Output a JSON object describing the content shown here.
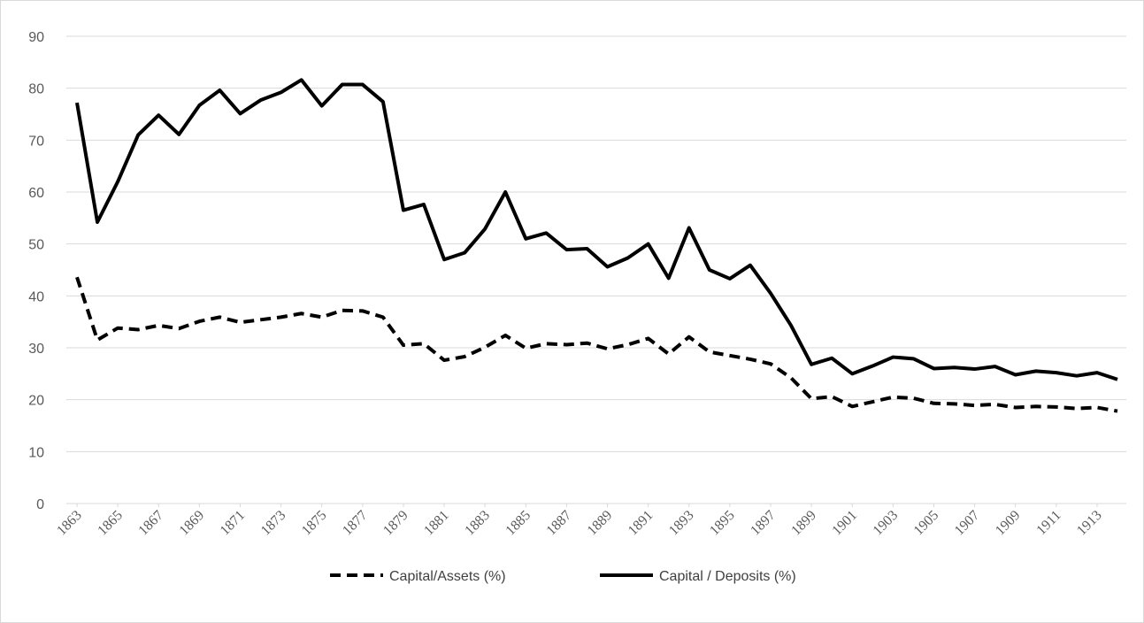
{
  "chart_data": {
    "type": "line",
    "x": [
      1863,
      1864,
      1865,
      1866,
      1867,
      1868,
      1869,
      1870,
      1871,
      1872,
      1873,
      1874,
      1875,
      1876,
      1877,
      1878,
      1879,
      1880,
      1881,
      1882,
      1883,
      1884,
      1885,
      1886,
      1887,
      1888,
      1889,
      1890,
      1891,
      1892,
      1893,
      1894,
      1895,
      1896,
      1897,
      1898,
      1899,
      1900,
      1901,
      1902,
      1903,
      1904,
      1905,
      1906,
      1907,
      1908,
      1909,
      1910,
      1911,
      1912,
      1913,
      1914
    ],
    "xlim": [
      1863,
      1914
    ],
    "xticks": [
      1863,
      1865,
      1867,
      1869,
      1871,
      1873,
      1875,
      1877,
      1879,
      1881,
      1883,
      1885,
      1887,
      1889,
      1891,
      1893,
      1895,
      1897,
      1899,
      1901,
      1903,
      1905,
      1907,
      1909,
      1911,
      1913
    ],
    "ylim": [
      0,
      90
    ],
    "yticks": [
      0,
      10,
      20,
      30,
      40,
      50,
      60,
      70,
      80,
      90
    ],
    "grid": true,
    "legend": "bottom",
    "series": [
      {
        "name": "Capital/Assets (%)",
        "color": "#000000",
        "dashed": true,
        "values": [
          43.6,
          31.5,
          33.8,
          33.5,
          34.3,
          33.7,
          35.1,
          35.9,
          34.9,
          35.4,
          35.9,
          36.6,
          35.9,
          37.2,
          37.1,
          35.9,
          30.5,
          30.8,
          27.6,
          28.3,
          30.1,
          32.4,
          29.9,
          30.8,
          30.6,
          30.9,
          29.8,
          30.6,
          31.8,
          28.8,
          32.1,
          29.2,
          28.5,
          27.8,
          26.9,
          24.2,
          20.2,
          20.6,
          18.7,
          19.6,
          20.5,
          20.3,
          19.3,
          19.2,
          18.9,
          19.1,
          18.5,
          18.7,
          18.6,
          18.3,
          18.5,
          17.8
        ]
      },
      {
        "name": "Capital / Deposits (%)",
        "color": "#000000",
        "dashed": false,
        "values": [
          77.2,
          54.2,
          62,
          71,
          74.8,
          71.1,
          76.7,
          79.6,
          75.1,
          77.7,
          79.2,
          81.6,
          76.6,
          80.7,
          80.7,
          77.4,
          56.5,
          57.6,
          47,
          48.3,
          52.9,
          60,
          51,
          52.1,
          48.9,
          49.1,
          45.6,
          47.3,
          50,
          43.4,
          53.1,
          45,
          43.3,
          45.9,
          40.5,
          34.3,
          26.8,
          28,
          25,
          26.5,
          28.2,
          27.9,
          26,
          26.2,
          25.9,
          26.4,
          24.8,
          25.5,
          25.2,
          24.6,
          25.2,
          23.9
        ]
      }
    ]
  }
}
